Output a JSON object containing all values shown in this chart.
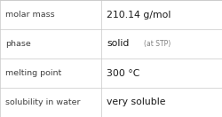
{
  "rows": [
    {
      "label": "molar mass",
      "value": "210.14 g/mol",
      "value2": null
    },
    {
      "label": "phase",
      "value": "solid",
      "value2": "(at STP)"
    },
    {
      "label": "melting point",
      "value": "300 °C",
      "value2": null
    },
    {
      "label": "solubility in water",
      "value": "very soluble",
      "value2": null
    }
  ],
  "bg_color": "#ffffff",
  "grid_color": "#c8c8c8",
  "label_color": "#404040",
  "value_color": "#1a1a1a",
  "value2_color": "#808080",
  "label_fontsize": 6.8,
  "value_fontsize": 7.8,
  "value2_fontsize": 5.5,
  "col_split": 0.455,
  "figwidth": 2.5,
  "figheight": 1.32,
  "dpi": 100
}
